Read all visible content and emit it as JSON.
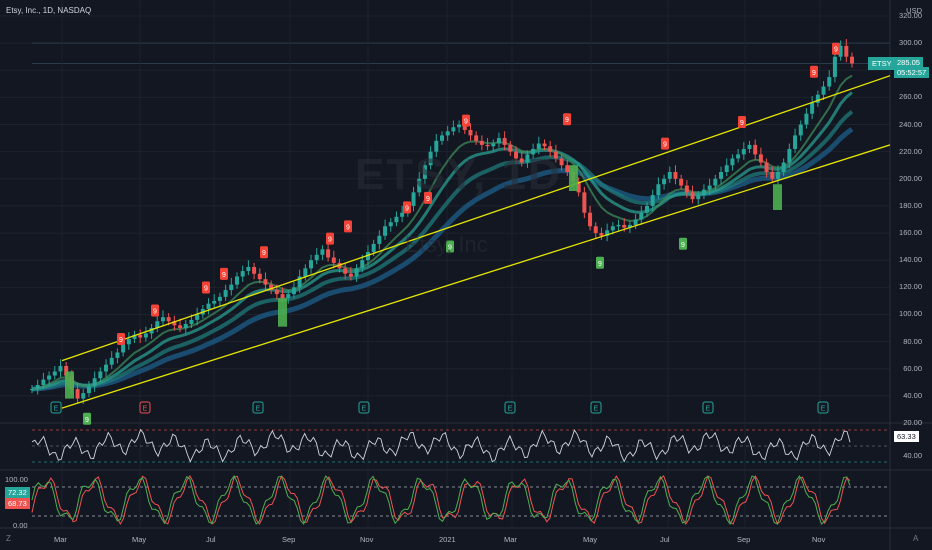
{
  "header": {
    "title": "Etsy, Inc., 1D, NASDAQ"
  },
  "watermark": {
    "symbol": "ETSY, 1D",
    "name": "Etsy, Inc"
  },
  "price_axis": {
    "currency": "USD",
    "labels": [
      "320.00",
      "300.00",
      "280.00",
      "260.00",
      "240.00",
      "220.00",
      "200.00",
      "180.00",
      "160.00",
      "140.00",
      "120.00",
      "100.00",
      "80.00",
      "60.00",
      "40.00",
      "20.00"
    ]
  },
  "price_tags": {
    "ticker": "ETSY",
    "last_price": "285.05",
    "countdown": "05:52:57"
  },
  "rsi": {
    "value": "63.33",
    "scale_label": "40.00"
  },
  "stoch": {
    "top_label": "100.00",
    "k_value": "72.32",
    "d_value": "68.73",
    "bottom_label": "0.00"
  },
  "time_axis": {
    "labels": [
      "Mar",
      "May",
      "Jul",
      "Sep",
      "Nov",
      "2021",
      "Mar",
      "May",
      "Jul",
      "Sep",
      "Nov"
    ]
  },
  "corner": {
    "left": "Z",
    "right": "A"
  },
  "markers": {
    "earnings": "E",
    "sell_count": "9",
    "buy_count": "9"
  },
  "colors": {
    "background": "#131722",
    "up": "#26a69a",
    "down": "#ef5350",
    "trendline": "#e6e600",
    "ema_teal": "#2a9d8f",
    "ema_blue": "#1f4e9e",
    "signal_green": "#4caf50",
    "signal_red": "#f44336",
    "rsi_line": "#d1d4dc",
    "stoch_k": "#4caf50",
    "stoch_d": "#ef5350"
  },
  "chart_data": {
    "type": "line",
    "series": [
      {
        "values": [
          45,
          48,
          52,
          55,
          58,
          62,
          55,
          45,
          38,
          42,
          47,
          53,
          58,
          63,
          68,
          72,
          78,
          82,
          85,
          83,
          86,
          90,
          95,
          98,
          95,
          92,
          90,
          93,
          96,
          100,
          104,
          108,
          110,
          113,
          118,
          122,
          128,
          132,
          135,
          130,
          126,
          122,
          118,
          115,
          112,
          115,
          120,
          128,
          134,
          140,
          144,
          148,
          142,
          138,
          134,
          130,
          128,
          134,
          140,
          146,
          152,
          158,
          165,
          168,
          172,
          175,
          180,
          190,
          200,
          210,
          220,
          228,
          232,
          235,
          238,
          240,
          236,
          232,
          228,
          225,
          224,
          226,
          230,
          225,
          220,
          215,
          212,
          218,
          222,
          226,
          224,
          220,
          215,
          210,
          205,
          198,
          190,
          175,
          165,
          160,
          158,
          162,
          165,
          166,
          164,
          166,
          170,
          175,
          180,
          188,
          196,
          200,
          205,
          200,
          195,
          190,
          185,
          188,
          192,
          195,
          200,
          205,
          210,
          215,
          218,
          222,
          225,
          218,
          212,
          205,
          200,
          205,
          212,
          222,
          232,
          240,
          248,
          256,
          262,
          268,
          275,
          290,
          298,
          290,
          285
        ]
      }
    ],
    "xlabel": "",
    "ylabel": "",
    "ylim": [
      10,
      325
    ]
  }
}
